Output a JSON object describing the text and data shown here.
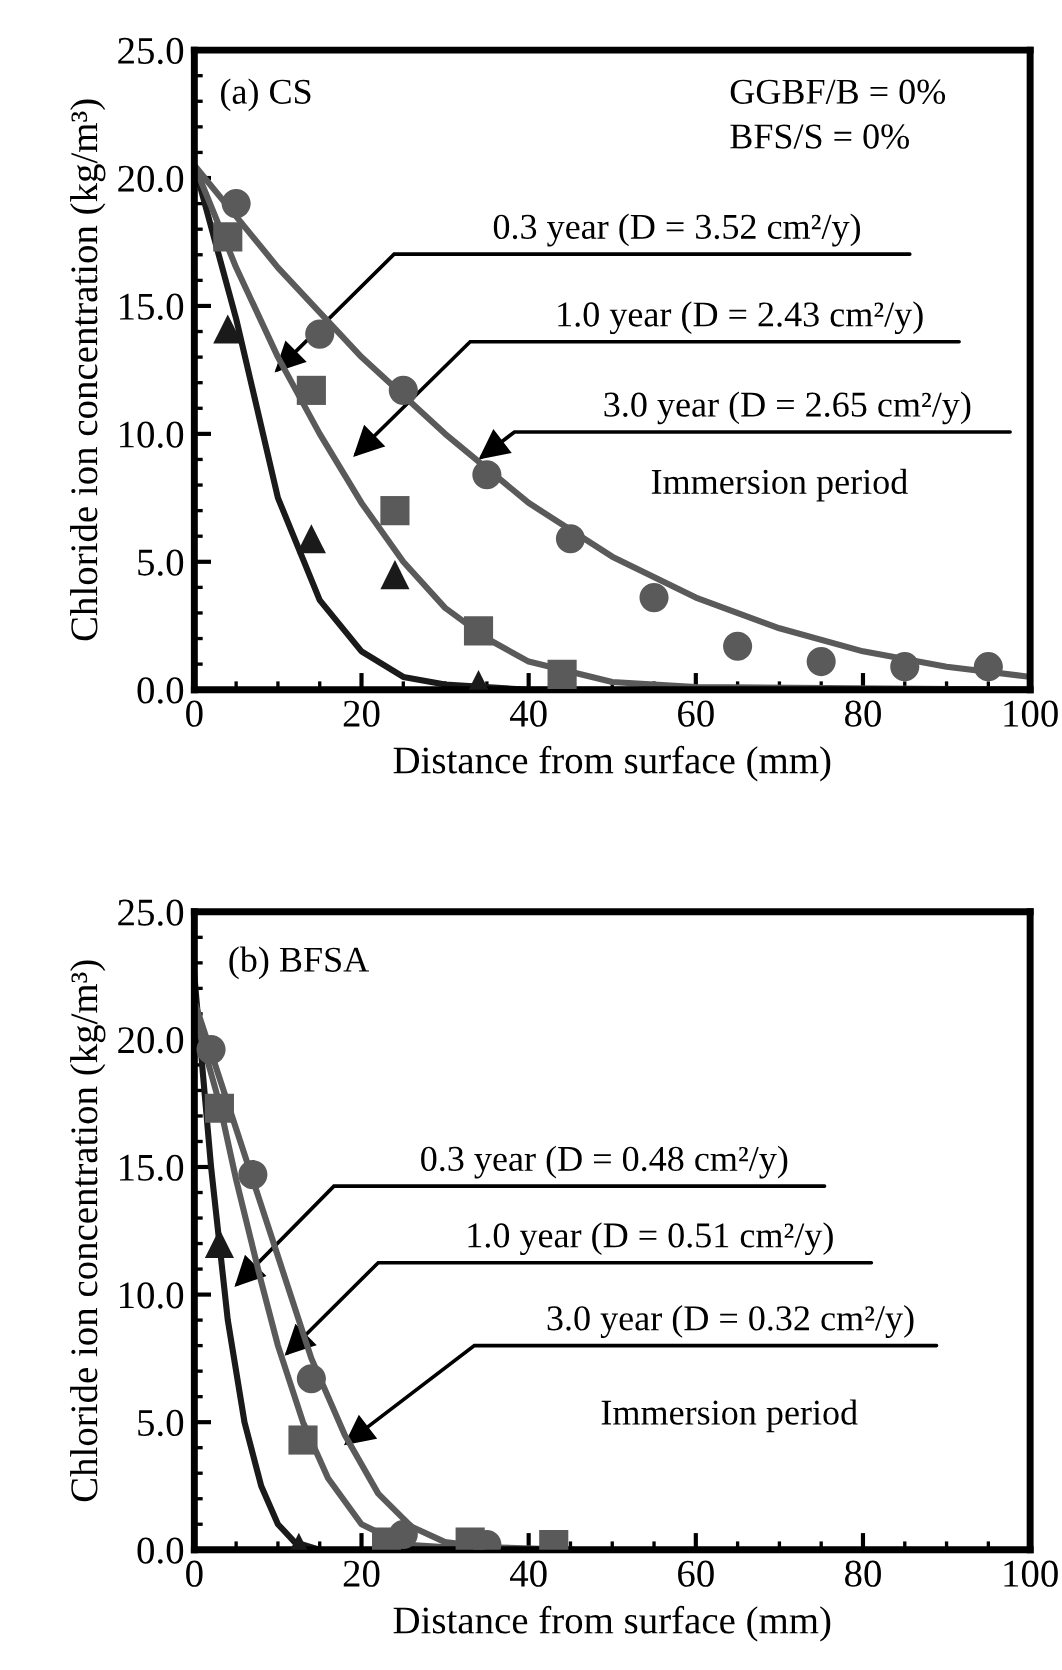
{
  "chart_data": [
    {
      "type": "scatter",
      "xlabel": "Distance from surface (mm)",
      "ylabel": "Chloride ion concentration (kg/m³)",
      "xlim": [
        0,
        100
      ],
      "ylim": [
        0,
        25
      ],
      "xticks": [
        0,
        20,
        40,
        60,
        80,
        100
      ],
      "yticks": [
        {
          "value": 0,
          "label": "0.0"
        },
        {
          "value": 5,
          "label": "5.0"
        },
        {
          "value": 10,
          "label": "10.0"
        },
        {
          "value": 15,
          "label": "15.0"
        },
        {
          "value": 20,
          "label": "20.0"
        },
        {
          "value": 25,
          "label": "25.0"
        }
      ],
      "grid": false,
      "legend": false,
      "annotations": [
        "(a) CS",
        "GGBF/B = 0%",
        "BFS/S = 0%",
        "0.3 year (D = 3.52 cm²/y)",
        "1.0 year (D = 2.43 cm²/y)",
        "3.0 year (D = 2.65 cm²/y)",
        "Immersion period"
      ],
      "series": [
        {
          "marker": "triangle",
          "color": "#1a1a1a",
          "x": [
            4,
            14,
            24,
            34
          ],
          "values": [
            14.1,
            5.9,
            4.5,
            0.2
          ]
        },
        {
          "marker": "square",
          "color": "#5a5a5a",
          "x": [
            4,
            14,
            24,
            34,
            44
          ],
          "values": [
            17.7,
            11.7,
            7.0,
            2.3,
            0.6
          ]
        },
        {
          "marker": "circle",
          "color": "#5a5a5a",
          "x": [
            5,
            15,
            25,
            35,
            45,
            55,
            65,
            75,
            85,
            95
          ],
          "values": [
            19.0,
            13.9,
            11.7,
            8.4,
            5.9,
            3.6,
            1.7,
            1.1,
            0.9,
            0.9
          ]
        },
        {
          "type": "line",
          "marker": "none",
          "color": "#1a1a1a",
          "x": [
            0,
            5,
            10,
            15,
            20,
            25,
            30,
            40,
            100
          ],
          "values": [
            20.5,
            14.5,
            7.5,
            3.5,
            1.5,
            0.5,
            0.2,
            0,
            0
          ]
        },
        {
          "type": "line",
          "marker": "none",
          "color": "#5a5a5a",
          "x": [
            0,
            5,
            10,
            15,
            20,
            25,
            30,
            35,
            40,
            50,
            60,
            100
          ],
          "values": [
            20.5,
            16.5,
            13,
            10,
            7.3,
            5,
            3.2,
            2,
            1.1,
            0.3,
            0.1,
            0
          ]
        },
        {
          "type": "line",
          "marker": "none",
          "color": "#5a5a5a",
          "x": [
            0,
            10,
            20,
            30,
            40,
            50,
            60,
            70,
            80,
            90,
            100
          ],
          "values": [
            20.5,
            16.5,
            13,
            10,
            7.3,
            5.2,
            3.6,
            2.4,
            1.5,
            0.9,
            0.5
          ]
        }
      ]
    },
    {
      "type": "scatter",
      "xlabel": "Distance from surface (mm)",
      "ylabel": "Chloride ion concentration (kg/m³)",
      "xlim": [
        0,
        100
      ],
      "ylim": [
        0,
        25
      ],
      "xticks": [
        0,
        20,
        40,
        60,
        80,
        100
      ],
      "yticks": [
        {
          "value": 0,
          "label": "0.0"
        },
        {
          "value": 5,
          "label": "5.0"
        },
        {
          "value": 10,
          "label": "10.0"
        },
        {
          "value": 15,
          "label": "15.0"
        },
        {
          "value": 20,
          "label": "20.0"
        },
        {
          "value": 25,
          "label": "25.0"
        }
      ],
      "grid": false,
      "legend": false,
      "annotations": [
        "(b) BFSA",
        "0.3 year (D = 0.48 cm²/y)",
        "1.0 year (D = 0.51 cm²/y)",
        "3.0 year (D = 0.32 cm²/y)",
        "Immersion period"
      ],
      "series": [
        {
          "marker": "triangle",
          "color": "#1a1a1a",
          "x": [
            3,
            12.5
          ],
          "values": [
            12.0,
            0.1
          ]
        },
        {
          "marker": "square",
          "color": "#5a5a5a",
          "x": [
            3,
            13,
            23,
            33,
            43
          ],
          "values": [
            17.3,
            4.3,
            0.3,
            0.3,
            0.2
          ]
        },
        {
          "marker": "circle",
          "color": "#5a5a5a",
          "x": [
            2,
            7,
            14,
            25,
            35
          ],
          "values": [
            19.6,
            14.7,
            6.7,
            0.6,
            0.2
          ]
        },
        {
          "type": "line",
          "marker": "none",
          "color": "#1a1a1a",
          "x": [
            0,
            2,
            4,
            6,
            8,
            10,
            12,
            15
          ],
          "values": [
            22.5,
            15,
            9,
            5,
            2.5,
            1,
            0.3,
            0
          ]
        },
        {
          "type": "line",
          "marker": "none",
          "color": "#5a5a5a",
          "x": [
            0,
            3,
            5,
            8,
            10,
            13,
            16,
            20,
            25,
            35,
            45
          ],
          "values": [
            21,
            17.5,
            14.5,
            10.5,
            8,
            5,
            2.8,
            1,
            0.2,
            0,
            0
          ]
        },
        {
          "type": "line",
          "marker": "none",
          "color": "#5a5a5a",
          "x": [
            0,
            3,
            6,
            10,
            14,
            18,
            22,
            26,
            30,
            35,
            45
          ],
          "values": [
            21.5,
            18.5,
            15.5,
            11.5,
            7.5,
            4.5,
            2.2,
            0.9,
            0.3,
            0.1,
            0
          ]
        }
      ]
    }
  ]
}
